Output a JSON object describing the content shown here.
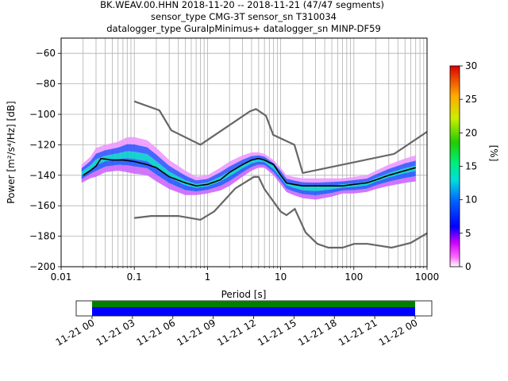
{
  "title_lines": [
    "BK.WEAV.00.HHN   2018-11-20 -- 2018-11-21  (47/47 segments)",
    "sensor_type CMG-3T sensor_sn T310034",
    "datalogger_type GuralpMinimus+ datalogger_sn MINP-DF59"
  ],
  "chart_data": [
    {
      "type": "heatmap",
      "xlabel": "Period [s]",
      "ylabel": "Power [m²/s⁴/Hz] [dB]",
      "x_scale": "log",
      "xlim": [
        0.01,
        1000
      ],
      "ylim": [
        -200,
        -50
      ],
      "x_ticks": [
        0.01,
        0.1,
        1,
        10,
        100,
        1000
      ],
      "x_tick_labels": [
        "0.01",
        "0.1",
        "1",
        "10",
        "100",
        "1000"
      ],
      "y_ticks": [
        -200,
        -180,
        -160,
        -140,
        -120,
        -100,
        -80,
        -60
      ],
      "y_tick_labels": [
        "−200",
        "−180",
        "−160",
        "−140",
        "−120",
        "−100",
        "−80",
        "−60"
      ],
      "grid": true,
      "colorbar": {
        "label": "[%]",
        "range": [
          0,
          30
        ],
        "ticks": [
          0,
          5,
          10,
          15,
          20,
          25,
          30
        ],
        "tick_labels": [
          "0",
          "5",
          "10",
          "15",
          "20",
          "25",
          "30"
        ]
      },
      "mode_curve": {
        "x": [
          0.02,
          0.025,
          0.03,
          0.035,
          0.05,
          0.07,
          0.1,
          0.15,
          0.2,
          0.3,
          0.5,
          0.7,
          1,
          1.5,
          2,
          3,
          4,
          5,
          6,
          8,
          10,
          12,
          15,
          20,
          30,
          50,
          70,
          100,
          150,
          200,
          300,
          500,
          700
        ],
        "y": [
          -140,
          -137,
          -134,
          -129,
          -130,
          -130,
          -131,
          -133,
          -135,
          -141,
          -145,
          -147,
          -146,
          -143,
          -138,
          -133,
          -130,
          -129,
          -130,
          -133,
          -140,
          -145,
          -146,
          -147,
          -147,
          -147,
          -147,
          -146,
          -145,
          -143,
          -140,
          -137,
          -135
        ]
      },
      "noise_model_high": {
        "x": [
          0.1,
          0.22,
          0.32,
          0.8,
          3.8,
          4.6,
          6.3,
          7.9,
          15.4,
          20,
          354.8,
          1000
        ],
        "y": [
          -91.5,
          -97.4,
          -110.5,
          -120,
          -98,
          -96.5,
          -101,
          -113.5,
          -120,
          -138.5,
          -126,
          -111.5
        ]
      },
      "noise_model_low": {
        "x": [
          0.1,
          0.17,
          0.4,
          0.8,
          1.24,
          2.4,
          4.3,
          5,
          6,
          10,
          12,
          15.6,
          21.9,
          31.6,
          45,
          70,
          101,
          154,
          328,
          600,
          1000
        ],
        "y": [
          -168,
          -166.7,
          -166.7,
          -169.2,
          -163.7,
          -148.6,
          -141.1,
          -141.1,
          -149,
          -163.8,
          -166.2,
          -162.1,
          -177.5,
          -185,
          -187.5,
          -187.5,
          -185,
          -185,
          -187.5,
          -184.4,
          -178
        ]
      },
      "pdf_envelope": {
        "x": [
          0.019,
          0.025,
          0.03,
          0.04,
          0.06,
          0.08,
          0.1,
          0.15,
          0.2,
          0.3,
          0.5,
          0.7,
          1,
          1.5,
          2,
          3,
          4,
          5,
          6,
          8,
          10,
          12,
          15,
          20,
          30,
          50,
          70,
          100,
          150,
          200,
          300,
          500,
          700
        ],
        "upper": [
          -133,
          -128,
          -122,
          -120,
          -118,
          -115,
          -115,
          -117,
          -122,
          -130,
          -137,
          -141,
          -140,
          -135,
          -131,
          -127,
          -125,
          -125,
          -126,
          -130,
          -135,
          -140,
          -141,
          -142,
          -142,
          -142,
          -142,
          -141,
          -140,
          -137,
          -133,
          -129,
          -127
        ],
        "lower": [
          -145,
          -142,
          -141,
          -138,
          -137,
          -138,
          -139,
          -140,
          -144,
          -149,
          -153,
          -153,
          -152,
          -150,
          -147,
          -141,
          -137,
          -135,
          -135,
          -140,
          -146,
          -151,
          -153,
          -155,
          -156,
          -154,
          -152,
          -152,
          -151,
          -149,
          -147,
          -145,
          -144
        ]
      }
    },
    {
      "type": "timeline",
      "x_tick_labels": [
        "11-21 00",
        "11-21 03",
        "11-21 06",
        "11-21 09",
        "11-21 12",
        "11-21 15",
        "11-21 18",
        "11-21 21",
        "11-22 00"
      ],
      "coverage_start_hours": 0,
      "coverage_end_hours": 24,
      "colors": [
        "#008000",
        "#0000ff"
      ]
    }
  ]
}
